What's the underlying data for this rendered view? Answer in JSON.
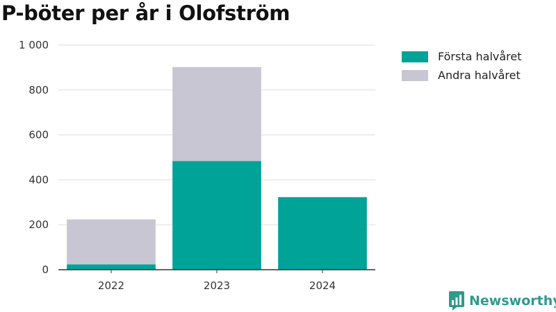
{
  "chart_data": {
    "type": "bar",
    "stacked": true,
    "title": "P-böter per år i Olofström",
    "categories": [
      "2022",
      "2023",
      "2024"
    ],
    "series": [
      {
        "name": "Första halvåret",
        "color": "#00a398",
        "values": [
          24,
          484,
          323
        ]
      },
      {
        "name": "Andra halvåret",
        "color": "#c8c6d2",
        "values": [
          200,
          418,
          0
        ]
      }
    ],
    "yticks": [
      "0",
      "200",
      "400",
      "600",
      "800",
      "1 000"
    ],
    "ylim": [
      0,
      1000
    ],
    "grid": true,
    "legend_position": "right"
  },
  "branding": {
    "logo_text": "Newsworthy",
    "logo_icon": "newsworthy-logo-icon",
    "logo_color": "#2f9a8d"
  }
}
